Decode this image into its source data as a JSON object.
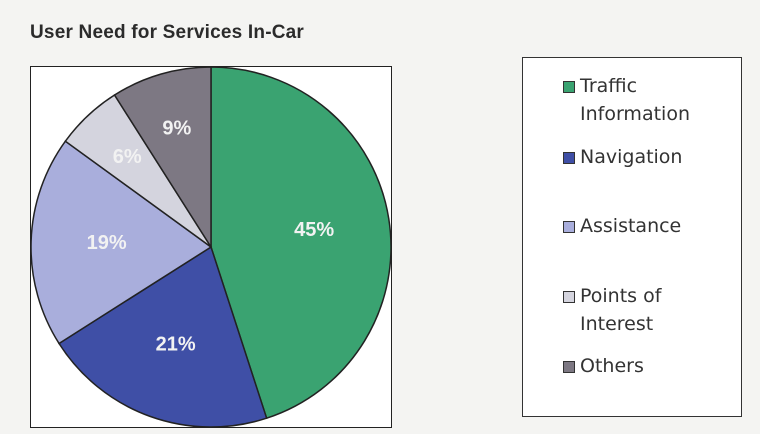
{
  "chart_data": {
    "type": "pie",
    "title": "User Need for Services In-Car",
    "slices": [
      {
        "label": "Traffic Information",
        "value": 45,
        "value_label": "45%",
        "color": "#3aa371"
      },
      {
        "label": "Navigation",
        "value": 21,
        "value_label": "21%",
        "color": "#3f4fa6"
      },
      {
        "label": "Assistance",
        "value": 19,
        "value_label": "19%",
        "color": "#a9aedc"
      },
      {
        "label": "Points of Interest",
        "value": 6,
        "value_label": "6%",
        "color": "#d4d4de"
      },
      {
        "label": "Others",
        "value": 9,
        "value_label": "9%",
        "color": "#7d7883"
      }
    ],
    "start": "12 o'clock",
    "direction": "clockwise",
    "legend_position": "right"
  }
}
